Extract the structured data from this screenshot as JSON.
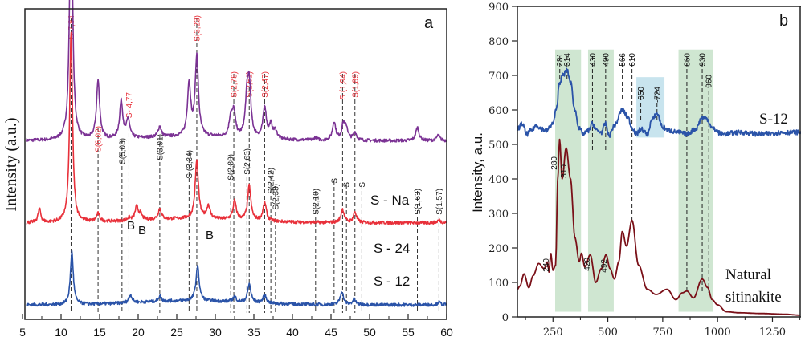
{
  "chart_data": [
    {
      "id": "a",
      "type": "line",
      "panel_letter": "a",
      "title": "",
      "xlabel": "",
      "ylabel": "Intensity (a.u.)",
      "xlim": [
        5,
        60
      ],
      "x_ticks": [
        5,
        10,
        15,
        20,
        25,
        30,
        35,
        40,
        45,
        50,
        55,
        60
      ],
      "y_ticks": [],
      "grid": false,
      "series": [
        {
          "name": "S - Na",
          "color": "#7b3294",
          "offset": 0.62,
          "baseline": 0.0,
          "peaks": [
            [
              11.3,
              1.0
            ],
            [
              14.8,
              0.22
            ],
            [
              17.8,
              0.14
            ],
            [
              18.7,
              0.07
            ],
            [
              22.8,
              0.04
            ],
            [
              26.6,
              0.2
            ],
            [
              27.6,
              0.3
            ],
            [
              32.0,
              0.07
            ],
            [
              32.4,
              0.09
            ],
            [
              34.1,
              0.13
            ],
            [
              34.4,
              0.19
            ],
            [
              36.4,
              0.12
            ],
            [
              37.2,
              0.05
            ],
            [
              37.8,
              0.03
            ],
            [
              43.0,
              0.01
            ],
            [
              45.4,
              0.07
            ],
            [
              46.6,
              0.06
            ],
            [
              47.0,
              0.04
            ],
            [
              48.1,
              0.03
            ],
            [
              56.2,
              0.05
            ],
            [
              58.9,
              0.02
            ]
          ]
        },
        {
          "name": "S - 24",
          "color": "#e8303a",
          "offset": 0.31,
          "baseline": 0.0,
          "peaks": [
            [
              7.2,
              0.05
            ],
            [
              11.3,
              0.72
            ],
            [
              14.8,
              0.03
            ],
            [
              18.8,
              0.01
            ],
            [
              19.8,
              0.05
            ],
            [
              20.3,
              0.02
            ],
            [
              22.8,
              0.04
            ],
            [
              27.6,
              0.22
            ],
            [
              29.1,
              0.05
            ],
            [
              32.5,
              0.07
            ],
            [
              34.4,
              0.13
            ],
            [
              36.4,
              0.07
            ],
            [
              46.5,
              0.05
            ],
            [
              48.1,
              0.04
            ],
            [
              59.0,
              0.01
            ]
          ]
        },
        {
          "name": "S - 12",
          "color": "#2a53a8",
          "offset": 0.0,
          "baseline": 0.0,
          "peaks": [
            [
              11.4,
              0.2
            ],
            [
              19.0,
              0.03
            ],
            [
              22.8,
              0.02
            ],
            [
              27.7,
              0.13
            ],
            [
              32.5,
              0.02
            ],
            [
              34.4,
              0.07
            ],
            [
              36.4,
              0.03
            ],
            [
              46.4,
              0.05
            ],
            [
              48.0,
              0.02
            ],
            [
              59.0,
              0.01
            ]
          ]
        }
      ],
      "reference_lines": [
        {
          "x": 11.3,
          "label": "S-7,84",
          "color": "#e8303a"
        },
        {
          "x": 14.8,
          "label": "S(6,02)",
          "color": "#e8303a"
        },
        {
          "x": 17.9,
          "label": "S(5,03)",
          "color": "#222222"
        },
        {
          "x": 18.8,
          "label": "S- 4,77",
          "color": "#e8303a"
        },
        {
          "x": 22.8,
          "label": "S(3,91)",
          "color": "#222222"
        },
        {
          "x": 26.6,
          "label": "S (3,34)",
          "color": "#222222"
        },
        {
          "x": 27.6,
          "label": "S(3,23)",
          "color": "#e8303a"
        },
        {
          "x": 32.0,
          "label": "S(2,80)",
          "color": "#222222"
        },
        {
          "x": 32.4,
          "label": "S(2,78)",
          "color": "#e8303a"
        },
        {
          "x": 34.1,
          "label": "S(2,63)",
          "color": "#222222"
        },
        {
          "x": 34.4,
          "label": "S(2,61)",
          "color": "#e8303a"
        },
        {
          "x": 36.4,
          "label": "S(2,47)",
          "color": "#e8303a"
        },
        {
          "x": 37.2,
          "label": "S(2,42)",
          "color": "#222222"
        },
        {
          "x": 37.8,
          "label": "S(2,38)",
          "color": "#222222"
        },
        {
          "x": 43.0,
          "label": "S(2,10)",
          "color": "#222222"
        },
        {
          "x": 45.4,
          "label": "S",
          "color": "#222222"
        },
        {
          "x": 46.5,
          "label": "S (1,94)",
          "color": "#e8303a"
        },
        {
          "x": 47.0,
          "label": "S",
          "color": "#222222"
        },
        {
          "x": 48.1,
          "label": "S(1,89)",
          "color": "#e8303a"
        },
        {
          "x": 49.0,
          "label": "S",
          "color": "#222222"
        },
        {
          "x": 56.2,
          "label": "S(1,63)",
          "color": "#222222"
        },
        {
          "x": 59.0,
          "label": "S(1,57)",
          "color": "#222222"
        }
      ],
      "annotations": [
        {
          "text": "B",
          "x": 19.5,
          "series": "S - 24"
        },
        {
          "text": "B",
          "x": 20.6,
          "series": "S - 24"
        },
        {
          "text": "B",
          "x": 29.9,
          "series": "S - 24"
        }
      ]
    },
    {
      "id": "b",
      "type": "line",
      "panel_letter": "b",
      "title": "",
      "xlabel": "",
      "ylabel": "Intensity, a.u.",
      "xlim": [
        88,
        1380
      ],
      "ylim": [
        0,
        900
      ],
      "x_ticks": [
        250,
        500,
        750,
        1000,
        1250
      ],
      "x_minor_ticks": [
        125,
        375,
        625,
        875,
        1125,
        1375
      ],
      "y_ticks": [
        0,
        100,
        200,
        300,
        400,
        500,
        600,
        700,
        800,
        900
      ],
      "grid": false,
      "series": [
        {
          "name": "S-12",
          "color": "#2a53a8",
          "points": [
            [
              88,
              545
            ],
            [
              110,
              560
            ],
            [
              130,
              530
            ],
            [
              150,
              540
            ],
            [
              175,
              555
            ],
            [
              200,
              545
            ],
            [
              220,
              540
            ],
            [
              250,
              560
            ],
            [
              265,
              600
            ],
            [
              280,
              680
            ],
            [
              295,
              700
            ],
            [
              314,
              715
            ],
            [
              330,
              680
            ],
            [
              350,
              600
            ],
            [
              370,
              545
            ],
            [
              390,
              530
            ],
            [
              410,
              540
            ],
            [
              430,
              560
            ],
            [
              450,
              540
            ],
            [
              470,
              535
            ],
            [
              490,
              560
            ],
            [
              505,
              525
            ],
            [
              530,
              555
            ],
            [
              566,
              600
            ],
            [
              590,
              580
            ],
            [
              610,
              550
            ],
            [
              630,
              530
            ],
            [
              650,
              545
            ],
            [
              680,
              530
            ],
            [
              700,
              570
            ],
            [
              724,
              590
            ],
            [
              750,
              550
            ],
            [
              780,
              540
            ],
            [
              820,
              535
            ],
            [
              860,
              530
            ],
            [
              900,
              545
            ],
            [
              930,
              578
            ],
            [
              950,
              575
            ],
            [
              980,
              545
            ],
            [
              1020,
              530
            ],
            [
              1100,
              535
            ],
            [
              1200,
              530
            ],
            [
              1300,
              535
            ],
            [
              1380,
              535
            ]
          ]
        },
        {
          "name": "Natural sitinakite",
          "color": "#7a1018",
          "points": [
            [
              88,
              80
            ],
            [
              100,
              90
            ],
            [
              118,
              125
            ],
            [
              140,
              85
            ],
            [
              160,
              120
            ],
            [
              185,
              155
            ],
            [
              210,
              140
            ],
            [
              225,
              160
            ],
            [
              232,
              130
            ],
            [
              240,
              185
            ],
            [
              250,
              135
            ],
            [
              262,
              150
            ],
            [
              272,
              400
            ],
            [
              280,
              515
            ],
            [
              292,
              400
            ],
            [
              310,
              490
            ],
            [
              330,
              400
            ],
            [
              350,
              230
            ],
            [
              370,
              160
            ],
            [
              380,
              185
            ],
            [
              395,
              145
            ],
            [
              420,
              180
            ],
            [
              445,
              100
            ],
            [
              470,
              140
            ],
            [
              492,
              180
            ],
            [
              510,
              140
            ],
            [
              530,
              110
            ],
            [
              550,
              160
            ],
            [
              566,
              248
            ],
            [
              585,
              205
            ],
            [
              610,
              280
            ],
            [
              640,
              150
            ],
            [
              680,
              80
            ],
            [
              720,
              65
            ],
            [
              770,
              80
            ],
            [
              810,
              50
            ],
            [
              840,
              70
            ],
            [
              860,
              75
            ],
            [
              890,
              55
            ],
            [
              930,
              110
            ],
            [
              955,
              85
            ],
            [
              975,
              50
            ],
            [
              1000,
              35
            ],
            [
              1040,
              15
            ],
            [
              1100,
              12
            ],
            [
              1200,
              10
            ],
            [
              1300,
              8
            ],
            [
              1380,
              5
            ]
          ]
        }
      ],
      "shaded_regions": [
        {
          "from": 260,
          "to": 378,
          "color": "#cfe6d1",
          "ymin": 15,
          "ymax": 775
        },
        {
          "from": 410,
          "to": 527,
          "color": "#cfe6d1",
          "ymin": 15,
          "ymax": 775
        },
        {
          "from": 630,
          "to": 758,
          "color": "#c8e4ee",
          "ymin": 520,
          "ymax": 695
        },
        {
          "from": 822,
          "to": 980,
          "color": "#cfe6d1",
          "ymin": 15,
          "ymax": 775
        }
      ],
      "reference_lines_top": [
        {
          "x": 281,
          "label": "281"
        },
        {
          "x": 314,
          "label": "314"
        },
        {
          "x": 430,
          "label": "430"
        },
        {
          "x": 490,
          "label": "490"
        },
        {
          "x": 566,
          "label": "566"
        },
        {
          "x": 610,
          "label": "610"
        },
        {
          "x": 650,
          "label": "650"
        },
        {
          "x": 724,
          "label": "-724"
        },
        {
          "x": 860,
          "label": "860"
        },
        {
          "x": 930,
          "label": "930"
        },
        {
          "x": 960,
          "label": "960"
        }
      ],
      "peak_labels_bottom": [
        {
          "x": 280,
          "label": "280"
        },
        {
          "x": 310,
          "label": "310"
        },
        {
          "x": 240,
          "label": "240"
        },
        {
          "x": 420,
          "label": "420"
        },
        {
          "x": 492,
          "label": "492"
        }
      ]
    }
  ]
}
